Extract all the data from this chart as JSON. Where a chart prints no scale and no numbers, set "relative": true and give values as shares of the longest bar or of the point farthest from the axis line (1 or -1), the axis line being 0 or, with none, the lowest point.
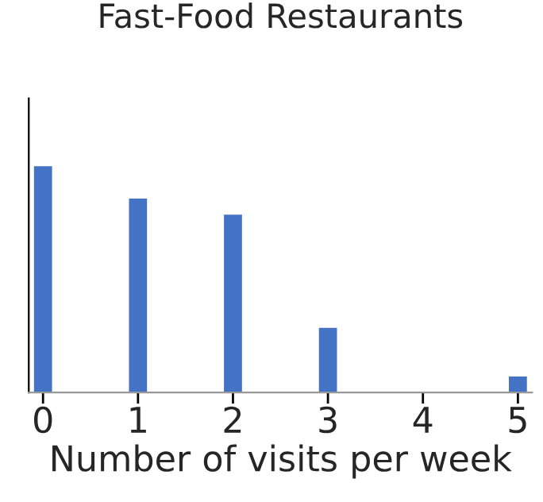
{
  "chart_data": {
    "type": "bar",
    "title": "Fast-Food Restaurants",
    "xlabel": "Number of visits per week",
    "relative": true,
    "x": [
      0,
      1,
      2,
      3,
      4,
      5
    ],
    "series": [
      {
        "color": "#4472c4",
        "values": [
          1,
          0.857,
          0.786,
          0.286,
          0,
          0.071
        ]
      }
    ],
    "xlim": [
      -0.15,
      5.15
    ],
    "xticks": [
      0,
      1,
      2,
      3,
      4,
      5
    ],
    "tick_labels": "x",
    "grid": false
  }
}
